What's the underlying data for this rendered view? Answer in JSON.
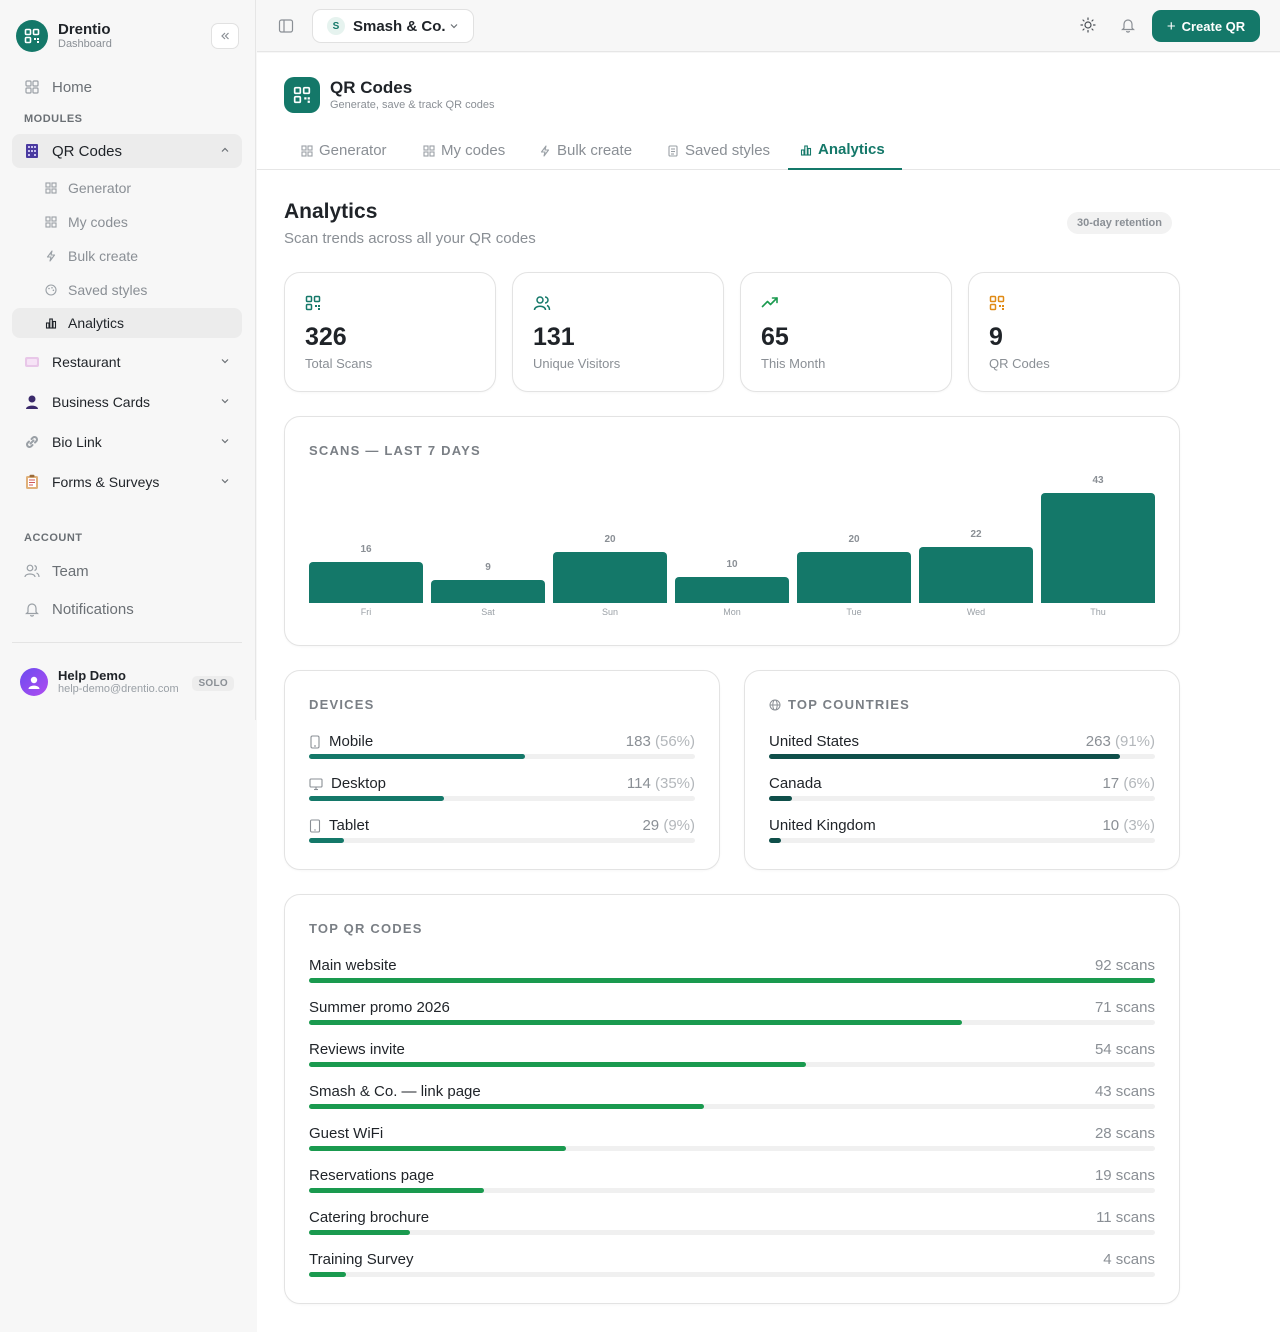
{
  "brand": {
    "name": "Drentio",
    "subtitle": "Dashboard",
    "color": "#147869"
  },
  "sidebar": {
    "home": "Home",
    "modules_label": "MODULES",
    "qr_codes": "QR Codes",
    "sub_items": [
      "Generator",
      "My codes",
      "Bulk create",
      "Saved styles",
      "Analytics"
    ],
    "restaurant": "Restaurant",
    "business_cards": "Business Cards",
    "bio_link": "Bio Link",
    "forms_surveys": "Forms & Surveys",
    "account_label": "ACCOUNT",
    "team": "Team",
    "notifications": "Notifications"
  },
  "user": {
    "name": "Help Demo",
    "email": "help-demo@drentio.com",
    "plan": "SOLO"
  },
  "topbar": {
    "workspace_initial": "S",
    "workspace_name": "Smash & Co.",
    "create_label": "Create QR"
  },
  "page": {
    "title": "QR Codes",
    "subtitle": "Generate, save & track QR codes"
  },
  "tabs": [
    "Generator",
    "My codes",
    "Bulk create",
    "Saved styles",
    "Analytics"
  ],
  "active_tab": "Analytics",
  "analytics": {
    "title": "Analytics",
    "subtitle": "Scan trends across all your QR codes",
    "retention": "30-day retention"
  },
  "stats": [
    {
      "value": "326",
      "label": "Total Scans",
      "icon": "qr-icon",
      "color": "#147869"
    },
    {
      "value": "131",
      "label": "Unique Visitors",
      "icon": "users-icon",
      "color": "#147869"
    },
    {
      "value": "65",
      "label": "This Month",
      "icon": "trending-up-icon",
      "color": "#1a9a4f"
    },
    {
      "value": "9",
      "label": "QR Codes",
      "icon": "qr-icon",
      "color": "#e08a14"
    }
  ],
  "chart_data": {
    "type": "bar",
    "title": "SCANS — LAST 7 DAYS",
    "categories": [
      "Fri",
      "Sat",
      "Sun",
      "Mon",
      "Tue",
      "Wed",
      "Thu"
    ],
    "values": [
      16,
      9,
      20,
      10,
      20,
      22,
      43
    ],
    "ylim": [
      0,
      43
    ]
  },
  "devices": {
    "title": "DEVICES",
    "items": [
      {
        "name": "Mobile",
        "count": "183",
        "pct": "(56%)",
        "icon": "phone-icon",
        "share": 0.56
      },
      {
        "name": "Desktop",
        "count": "114",
        "pct": "(35%)",
        "icon": "monitor-icon",
        "share": 0.35
      },
      {
        "name": "Tablet",
        "count": "29",
        "pct": "(9%)",
        "icon": "tablet-icon",
        "share": 0.09
      }
    ]
  },
  "countries": {
    "title": "TOP COUNTRIES",
    "items": [
      {
        "name": "United States",
        "count": "263",
        "pct": "(91%)",
        "share": 0.91
      },
      {
        "name": "Canada",
        "count": "17",
        "pct": "(6%)",
        "share": 0.06
      },
      {
        "name": "United Kingdom",
        "count": "10",
        "pct": "(3%)",
        "share": 0.03
      }
    ]
  },
  "top_codes": {
    "title": "TOP QR CODES",
    "items": [
      {
        "name": "Main website",
        "scans": "92 scans",
        "value": 92
      },
      {
        "name": "Summer promo 2026",
        "scans": "71 scans",
        "value": 71
      },
      {
        "name": "Reviews invite",
        "scans": "54 scans",
        "value": 54
      },
      {
        "name": "Smash & Co. — link page",
        "scans": "43 scans",
        "value": 43
      },
      {
        "name": "Guest WiFi",
        "scans": "28 scans",
        "value": 28
      },
      {
        "name": "Reservations page",
        "scans": "19 scans",
        "value": 19
      },
      {
        "name": "Catering brochure",
        "scans": "11 scans",
        "value": 11
      },
      {
        "name": "Training Survey",
        "scans": "4 scans",
        "value": 4
      }
    ]
  },
  "colors": {
    "accent": "#147869",
    "green": "#1a9a4f",
    "country": "#0f4f4a"
  }
}
